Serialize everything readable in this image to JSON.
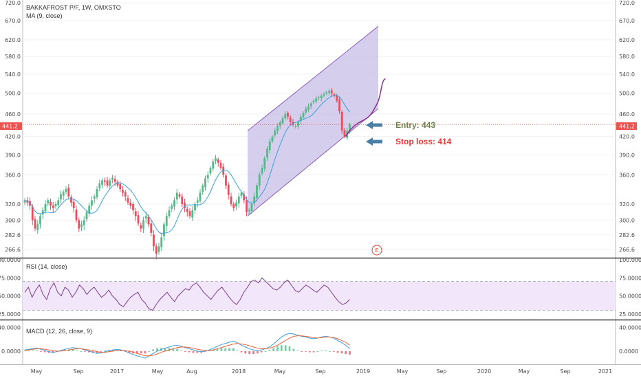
{
  "chart_data": [
    {
      "type": "candlestick",
      "title": "BAKKAFROST P/F, 1W, OMXSTO",
      "indicator_label": "MA (9, close)",
      "ylim": [
        260,
        720
      ],
      "y_ticks": [
        "720.0",
        "670.0",
        "620.0",
        "580.0",
        "540.0",
        "500.0",
        "460.0",
        "420.0",
        "390.0",
        "360.0",
        "320.0",
        "300.0",
        "282.6",
        "266.6"
      ],
      "last_price": "441.2",
      "annotations": [
        {
          "label": "Entry: 443",
          "value": 443
        },
        {
          "label": "Stop loss: 414",
          "value": 414
        }
      ],
      "earnings_marker": "E",
      "channel": {
        "lower_start": [
          0,
          305
        ],
        "lower_end": [
          1,
          470
        ],
        "upper_start": [
          0,
          430
        ],
        "upper_end": [
          1,
          655
        ]
      },
      "closes": [
        325,
        322,
        318,
        300,
        290,
        295,
        305,
        312,
        320,
        325,
        318,
        315,
        320,
        325,
        333,
        336,
        340,
        330,
        322,
        315,
        300,
        290,
        295,
        300,
        310,
        318,
        325,
        330,
        340,
        348,
        352,
        350,
        345,
        352,
        356,
        350,
        345,
        340,
        335,
        330,
        322,
        318,
        312,
        305,
        296,
        290,
        300,
        305,
        295,
        285,
        270,
        262,
        270,
        280,
        295,
        305,
        312,
        318,
        325,
        335,
        330,
        320,
        315,
        310,
        305,
        312,
        320,
        325,
        335,
        345,
        355,
        360,
        370,
        380,
        385,
        378,
        370,
        360,
        345,
        332,
        320,
        315,
        322,
        330,
        335,
        325,
        310,
        312,
        320,
        330,
        345,
        360,
        370,
        385,
        400,
        412,
        420,
        430,
        438,
        445,
        452,
        460,
        455,
        445,
        440,
        438,
        445,
        455,
        462,
        470,
        475,
        480,
        485,
        490,
        492,
        495,
        498,
        502,
        505,
        500,
        495,
        485,
        465,
        430,
        420,
        430,
        441
      ]
    },
    {
      "type": "line",
      "title": "RSI (14, close)",
      "ylim": [
        20,
        100
      ],
      "y_ticks": [
        "100.0000",
        "75.0000",
        "50.0000",
        "25.0000"
      ],
      "band": [
        30,
        70
      ],
      "values": [
        55,
        62,
        48,
        58,
        65,
        52,
        45,
        60,
        68,
        55,
        50,
        62,
        58,
        48,
        55,
        65,
        60,
        52,
        58,
        62,
        55,
        48,
        52,
        58,
        50,
        45,
        38,
        35,
        42,
        48,
        52,
        55,
        45,
        40,
        32,
        30,
        38,
        45,
        50,
        55,
        48,
        42,
        50,
        55,
        60,
        58,
        65,
        68,
        62,
        55,
        50,
        45,
        52,
        58,
        62,
        55,
        48,
        42,
        38,
        45,
        55,
        62,
        70,
        72,
        68,
        75,
        70,
        65,
        60,
        58,
        62,
        68,
        72,
        65,
        58,
        55,
        60,
        65,
        62,
        58,
        55,
        60,
        65,
        62,
        55,
        48,
        42,
        38,
        40,
        45
      ]
    },
    {
      "type": "line",
      "title": "MACD (12, 26, close, 9)",
      "ylim": [
        -20,
        50
      ],
      "y_ticks": [
        "40.0000",
        "0.0000"
      ],
      "macd": [
        2,
        3,
        4,
        5,
        3,
        1,
        -1,
        -2,
        -1,
        1,
        3,
        5,
        6,
        5,
        4,
        2,
        0,
        -2,
        -4,
        -3,
        -1,
        1,
        2,
        3,
        2,
        0,
        -3,
        -6,
        -8,
        -10,
        -12,
        -8,
        -4,
        0,
        3,
        5,
        7,
        9,
        10,
        8,
        6,
        4,
        2,
        0,
        -1,
        0,
        2,
        5,
        8,
        11,
        13,
        15,
        17,
        14,
        10,
        7,
        4,
        2,
        1,
        2,
        4,
        7,
        12,
        18,
        24,
        28,
        30,
        29,
        27,
        25,
        24,
        22,
        21,
        22,
        24,
        25,
        24,
        22,
        18,
        14,
        10,
        4
      ],
      "signal": [
        1,
        2,
        3,
        4,
        4,
        3,
        2,
        1,
        0,
        0,
        1,
        2,
        3,
        4,
        4,
        3,
        2,
        1,
        -1,
        -2,
        -2,
        -1,
        0,
        1,
        1,
        1,
        0,
        -2,
        -4,
        -6,
        -8,
        -8,
        -7,
        -5,
        -2,
        0,
        2,
        4,
        6,
        7,
        7,
        6,
        5,
        3,
        2,
        1,
        1,
        2,
        4,
        6,
        8,
        10,
        12,
        13,
        12,
        11,
        9,
        7,
        5,
        4,
        4,
        5,
        7,
        10,
        14,
        18,
        22,
        25,
        26,
        26,
        25,
        24,
        23,
        22,
        23,
        24,
        24,
        23,
        21,
        18,
        15,
        10
      ]
    },
    {
      "type": "axis",
      "x_tick_labels": [
        "May",
        "Sep",
        "2017",
        "May",
        "Aug",
        "2018",
        "May",
        "Sep",
        "2019",
        "May",
        "Sep",
        "2020",
        "May",
        "Sep",
        "2021"
      ]
    }
  ],
  "colors": {
    "up": "#53b987",
    "down": "#eb4d5c",
    "ma_line": "#3d9fd9",
    "channel_fill": "#c7bde6",
    "channel_line": "#8a5fb8",
    "projection_line": "#8a2f8e",
    "rsi_line": "#7a3f86",
    "rsi_band": "#f2e6fb",
    "macd_line": "#3d9fd9",
    "signal_line": "#e8643a",
    "price_tag": "#ef5350",
    "arrow": "#4a7fa6"
  }
}
